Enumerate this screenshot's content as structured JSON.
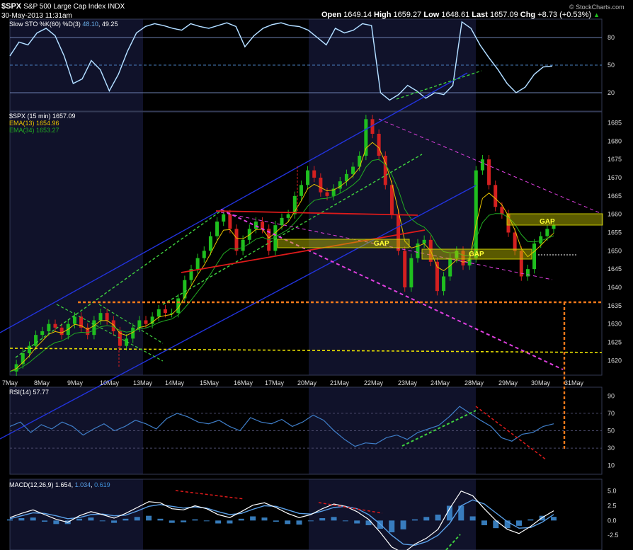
{
  "header": {
    "symbol": "$SPX",
    "name": "S&P 500 Large Cap Index",
    "exchange": "INDX",
    "datetime": "30-May-2013 11:31am",
    "open_label": "Open",
    "open": "1649.14",
    "high_label": "High",
    "high": "1659.27",
    "low_label": "Low",
    "low": "1648.61",
    "last_label": "Last",
    "last": "1657.09",
    "chg_label": "Chg",
    "chg": "+8.73 (+0.53%)",
    "watermark": "© StockCharts.com"
  },
  "chart_data": [
    {
      "type": "line",
      "panel": "stochastic",
      "legend": "Slow STO %K(60) %D(3)",
      "legend_k": "48.10",
      "legend_d": "49.25",
      "y_ticks": [
        "80",
        "50",
        "20"
      ],
      "ylim": [
        0,
        100
      ],
      "reference_lines": [
        80,
        50,
        20
      ],
      "values": [
        60,
        75,
        72,
        85,
        90,
        82,
        60,
        30,
        35,
        55,
        45,
        22,
        40,
        65,
        85,
        92,
        95,
        93,
        90,
        88,
        95,
        92,
        90,
        93,
        96,
        92,
        70,
        82,
        90,
        94,
        96,
        93,
        92,
        88,
        80,
        72,
        90,
        85,
        88,
        95,
        93,
        20,
        12,
        18,
        28,
        22,
        14,
        20,
        18,
        28,
        97,
        90,
        72,
        58,
        45,
        30,
        20,
        26,
        40,
        48,
        49
      ],
      "colors": {
        "line": "#6aaee8",
        "ref": "#6c7fb0",
        "mid": "#4a7fbf"
      }
    },
    {
      "type": "line",
      "panel": "price",
      "title": "$SPX (15 min) 1657.09",
      "series": [
        {
          "name": "EMA(13)",
          "value_label": "1654.96",
          "color": "#e8c200"
        },
        {
          "name": "EMA(34)",
          "value_label": "1653.27",
          "color": "#22aa22"
        }
      ],
      "x_labels": [
        "7May",
        "8May",
        "9May",
        "10May",
        "13May",
        "14May",
        "15May",
        "16May",
        "17May",
        "20May",
        "21May",
        "22May",
        "23May",
        "24May",
        "28May",
        "29May",
        "30May",
        "31May"
      ],
      "y_ticks": [
        1685,
        1680,
        1675,
        1670,
        1665,
        1660,
        1655,
        1650,
        1645,
        1640,
        1635,
        1630,
        1625,
        1620
      ],
      "ylim": [
        1616,
        1688
      ],
      "price": [
        1617,
        1619,
        1622,
        1624,
        1627,
        1628,
        1630,
        1629,
        1627,
        1630,
        1632,
        1629,
        1627,
        1631,
        1633,
        1631,
        1628,
        1624,
        1626,
        1629,
        1631,
        1630,
        1632,
        1634,
        1633,
        1633,
        1637,
        1642,
        1645,
        1648,
        1650,
        1654,
        1658,
        1660,
        1656,
        1650,
        1653,
        1656,
        1658,
        1656,
        1650,
        1657,
        1659,
        1660,
        1665,
        1668,
        1672,
        1670,
        1666,
        1665,
        1667,
        1669,
        1671,
        1673,
        1676,
        1686,
        1682,
        1676,
        1668,
        1660,
        1650,
        1640,
        1648,
        1652,
        1653,
        1647,
        1639,
        1643,
        1648,
        1650,
        1646,
        1648,
        1672,
        1675,
        1668,
        1662,
        1660,
        1655,
        1650,
        1643,
        1645,
        1652,
        1654,
        1656,
        1657
      ],
      "annotations": [
        "GAP",
        "GAP",
        "GAP"
      ],
      "colors": {
        "candle_up": "#1fbf1f",
        "candle_down": "#d42020",
        "channel": "#2233dd",
        "green_dash": "#3fd13f",
        "magenta_dash": "#e040e0",
        "red": "#dd1a1a",
        "orange_dash": "#ff7a1a",
        "yellow_dash": "#e8e000",
        "gap_box": "#c8c800",
        "gap_text": "#ffff33"
      }
    },
    {
      "type": "line",
      "panel": "rsi",
      "legend": "RSI(14) 57.77",
      "y_ticks": [
        "90",
        "70",
        "50",
        "30",
        "10"
      ],
      "ylim": [
        0,
        100
      ],
      "values": [
        55,
        60,
        48,
        57,
        52,
        60,
        55,
        45,
        52,
        58,
        50,
        55,
        62,
        58,
        52,
        64,
        70,
        66,
        60,
        58,
        62,
        55,
        50,
        65,
        60,
        58,
        63,
        55,
        60,
        68,
        62,
        50,
        40,
        32,
        36,
        35,
        42,
        45,
        40,
        48,
        52,
        56,
        66,
        78,
        70,
        62,
        55,
        42,
        38,
        46,
        48,
        55,
        58
      ],
      "colors": {
        "line": "#3f7ec8",
        "ref": "#4a4a6a"
      }
    },
    {
      "type": "line",
      "panel": "macd",
      "legend": "MACD(12,26,9)",
      "legend_macd": "1.654",
      "legend_signal": "1.034",
      "legend_hist": "0.619",
      "y_ticks": [
        "5.0",
        "2.5",
        "0.0",
        "-2.5"
      ],
      "ylim": [
        -5,
        7
      ],
      "macd": [
        0.5,
        1.2,
        1.8,
        1.0,
        0.2,
        -0.3,
        0.8,
        1.5,
        1.0,
        0.4,
        1.2,
        2.2,
        3.2,
        3.0,
        2.0,
        1.8,
        2.5,
        2.0,
        1.0,
        0.5,
        1.5,
        2.6,
        3.0,
        2.2,
        1.2,
        0.5,
        1.0,
        2.0,
        2.8,
        2.4,
        1.5,
        0.2,
        -2.0,
        -4.5,
        -5.5,
        -4.0,
        -3.0,
        -1.5,
        2.0,
        5.0,
        4.2,
        2.0,
        0.0,
        -1.5,
        -2.2,
        -1.0,
        0.5,
        1.65
      ],
      "signal": [
        0.3,
        0.8,
        1.3,
        1.2,
        0.8,
        0.3,
        0.5,
        1.0,
        1.1,
        0.8,
        0.9,
        1.6,
        2.4,
        2.7,
        2.4,
        2.1,
        2.3,
        2.1,
        1.5,
        1.0,
        1.2,
        1.9,
        2.5,
        2.4,
        1.8,
        1.2,
        1.1,
        1.6,
        2.2,
        2.4,
        2.0,
        1.0,
        -0.6,
        -2.5,
        -4.0,
        -4.2,
        -3.6,
        -2.5,
        -0.5,
        2.5,
        3.5,
        2.8,
        1.3,
        -0.2,
        -1.3,
        -1.2,
        -0.3,
        1.03
      ],
      "colors": {
        "macd": "#ffffff",
        "signal": "#5aa0e8",
        "hist": "#3f8fd8"
      }
    }
  ]
}
